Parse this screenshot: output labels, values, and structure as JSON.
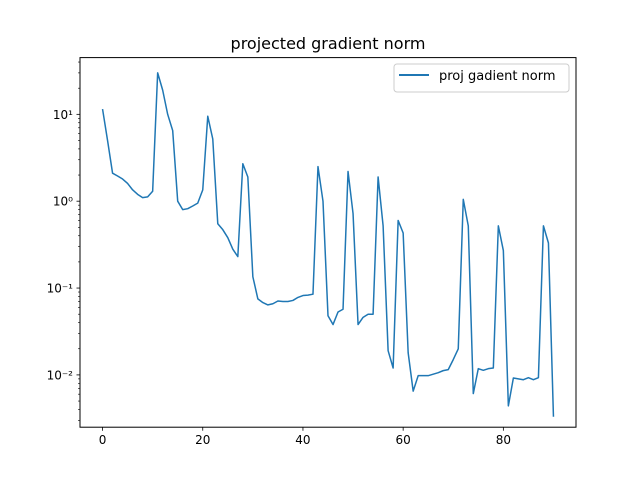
{
  "chart_data": {
    "type": "line",
    "title": "projected gradient norm",
    "xlabel": "",
    "ylabel": "",
    "yscale": "log",
    "xlim": [
      -4.5,
      94.5
    ],
    "ylim": [
      0.0025,
      45
    ],
    "x_ticks": [
      0,
      20,
      40,
      60,
      80
    ],
    "x_tick_labels": [
      "0",
      "20",
      "40",
      "60",
      "80"
    ],
    "y_ticks": [
      0.01,
      0.1,
      1,
      10
    ],
    "y_tick_labels": [
      "10⁻²",
      "10⁻¹",
      "10⁰",
      "10¹"
    ],
    "grid": false,
    "legend_position": "top-right",
    "series": [
      {
        "name": "proj gadient norm",
        "color": "#1f77b4",
        "x": [
          0,
          1,
          2,
          3,
          4,
          5,
          6,
          7,
          8,
          9,
          10,
          11,
          12,
          13,
          14,
          15,
          16,
          17,
          18,
          19,
          20,
          21,
          22,
          23,
          24,
          25,
          26,
          27,
          28,
          29,
          30,
          31,
          32,
          33,
          34,
          35,
          36,
          37,
          38,
          39,
          40,
          41,
          42,
          43,
          44,
          45,
          46,
          47,
          48,
          49,
          50,
          51,
          52,
          53,
          54,
          55,
          56,
          57,
          58,
          59,
          60,
          61,
          62,
          63,
          64,
          65,
          66,
          67,
          68,
          69,
          70,
          71,
          72,
          73,
          74,
          75,
          76,
          77,
          78,
          79,
          80,
          81,
          82,
          83,
          84,
          85,
          86,
          87,
          88,
          89,
          90
        ],
        "values": [
          11.5,
          5.0,
          2.1,
          1.95,
          1.8,
          1.6,
          1.35,
          1.2,
          1.1,
          1.12,
          1.3,
          30,
          19,
          10,
          6.5,
          1.0,
          0.8,
          0.82,
          0.88,
          0.95,
          1.35,
          9.5,
          5.2,
          0.55,
          0.47,
          0.38,
          0.28,
          0.23,
          2.7,
          1.9,
          0.135,
          0.075,
          0.068,
          0.064,
          0.066,
          0.071,
          0.07,
          0.07,
          0.072,
          0.078,
          0.082,
          0.083,
          0.085,
          2.5,
          1.0,
          0.048,
          0.038,
          0.053,
          0.057,
          2.2,
          0.72,
          0.038,
          0.046,
          0.05,
          0.05,
          1.9,
          0.52,
          0.019,
          0.012,
          0.6,
          0.43,
          0.018,
          0.0065,
          0.0098,
          0.0098,
          0.0098,
          0.0102,
          0.0106,
          0.0112,
          0.0115,
          0.015,
          0.02,
          1.05,
          0.52,
          0.0061,
          0.0118,
          0.0113,
          0.0118,
          0.012,
          0.52,
          0.27,
          0.0044,
          0.0092,
          0.009,
          0.0088,
          0.0093,
          0.0088,
          0.0093,
          0.52,
          0.33,
          0.0033
        ]
      }
    ]
  }
}
